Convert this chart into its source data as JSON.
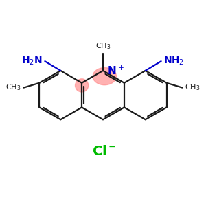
{
  "bg_color": "#ffffff",
  "bond_color": "#1a1a1a",
  "N_color": "#0000cc",
  "Cl_color": "#00bb00",
  "highlight_color": "#ff8888",
  "highlight_alpha": 0.65,
  "bond_lw": 1.6,
  "font_size": 10,
  "Cl_font_size": 12,
  "scale": 0.75
}
